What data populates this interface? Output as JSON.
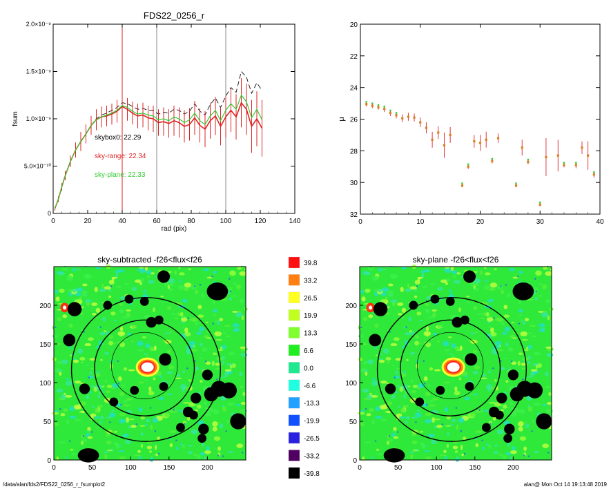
{
  "footer": {
    "path": "/data/alan/fds2/FDS22_0256_r_fsumplot2",
    "stamp": "alan@  Mon Oct 14 19:13:48 2019"
  },
  "colors": {
    "profile_total": "#222222",
    "sky_range": "#dd2222",
    "sky_plane": "#33cc33",
    "mu_points": "#d98020",
    "marker_lines": "#888888",
    "marker_red": "#dd2222"
  },
  "chart_data": [
    {
      "id": "fsum",
      "type": "line",
      "title": "FDS22_0256_r",
      "xlabel": "rad (pix)",
      "ylabel": "fsum",
      "xlim": [
        0,
        140
      ],
      "ylim": [
        0,
        2e-09
      ],
      "x_ticks": [
        "0",
        "20",
        "40",
        "60",
        "80",
        "100",
        "120",
        "140"
      ],
      "y_ticks": [
        "0",
        "5.0×10⁻¹⁰",
        "1.0×10⁻⁹",
        "1.5×10⁻⁹",
        "2.0×10⁻⁹"
      ],
      "vlines": [
        {
          "x": 40,
          "color": "red"
        },
        {
          "x": 60,
          "color": "gray"
        },
        {
          "x": 100,
          "color": "gray"
        }
      ],
      "annotations": [
        {
          "text": "skybox0: 22.29",
          "color": "black"
        },
        {
          "text": "sky-range: 22.34",
          "color": "red"
        },
        {
          "text": "sky-plane: 22.33",
          "color": "green"
        }
      ],
      "x": [
        1,
        3,
        5,
        7,
        10,
        13,
        16,
        19,
        22,
        25,
        28,
        31,
        34,
        37,
        40,
        43,
        46,
        49,
        52,
        55,
        58,
        61,
        64,
        67,
        70,
        73,
        76,
        79,
        82,
        85,
        88,
        91,
        94,
        97,
        100,
        103,
        106,
        109,
        112,
        115,
        118,
        121
      ],
      "series": [
        {
          "values": [
            0.05,
            0.15,
            0.28,
            0.4,
            0.55,
            0.67,
            0.76,
            0.84,
            0.93,
            1.0,
            1.04,
            1.06,
            1.09,
            1.12,
            1.17,
            1.16,
            1.13,
            1.1,
            1.11,
            1.09,
            1.09,
            1.05,
            1.07,
            1.06,
            1.1,
            1.09,
            1.05,
            1.08,
            1.16,
            1.08,
            1.04,
            1.15,
            1.22,
            1.12,
            1.24,
            1.33,
            1.28,
            1.5,
            1.44,
            1.27,
            1.38,
            1.3
          ],
          "style": "dashed"
        },
        {
          "values": [
            0.05,
            0.15,
            0.28,
            0.4,
            0.55,
            0.67,
            0.76,
            0.84,
            0.93,
            0.99,
            1.02,
            1.03,
            1.05,
            1.08,
            1.13,
            1.1,
            1.06,
            1.03,
            1.04,
            1.01,
            1.0,
            0.96,
            0.97,
            0.95,
            0.98,
            0.96,
            0.92,
            0.94,
            1.01,
            0.93,
            0.89,
            0.98,
            1.03,
            0.92,
            1.02,
            1.09,
            1.02,
            1.17,
            1.1,
            0.92,
            1.0,
            0.9
          ],
          "error": [
            0.02,
            0.03,
            0.04,
            0.05,
            0.06,
            0.08,
            0.1,
            0.1,
            0.1,
            0.11,
            0.11,
            0.11,
            0.11,
            0.12,
            0.12,
            0.12,
            0.12,
            0.13,
            0.13,
            0.13,
            0.14,
            0.14,
            0.15,
            0.15,
            0.16,
            0.16,
            0.17,
            0.17,
            0.18,
            0.18,
            0.19,
            0.19,
            0.2,
            0.2,
            0.22,
            0.23,
            0.24,
            0.26,
            0.27,
            0.28,
            0.29,
            0.3
          ],
          "style": "errorbar"
        },
        {
          "values": [
            0.05,
            0.15,
            0.28,
            0.4,
            0.55,
            0.67,
            0.76,
            0.84,
            0.93,
            0.99,
            1.02,
            1.04,
            1.06,
            1.09,
            1.14,
            1.12,
            1.08,
            1.05,
            1.06,
            1.04,
            1.03,
            0.99,
            1.0,
            0.98,
            1.02,
            1.0,
            0.96,
            0.99,
            1.06,
            0.98,
            0.94,
            1.03,
            1.09,
            0.98,
            1.09,
            1.16,
            1.1,
            1.25,
            1.18,
            1.01,
            1.1,
            0.99
          ],
          "style": "line"
        }
      ]
    },
    {
      "id": "mu",
      "type": "scatter",
      "title": "",
      "xlabel": "",
      "ylabel": "μ",
      "xlim": [
        0,
        40
      ],
      "ylim": [
        32,
        20
      ],
      "x_ticks": [
        "0",
        "10",
        "20",
        "30",
        "40"
      ],
      "y_ticks": [
        "20",
        "22",
        "24",
        "26",
        "28",
        "30",
        "32"
      ],
      "points": [
        {
          "x": 1,
          "y": 25.05,
          "err": 0.15
        },
        {
          "x": 2,
          "y": 25.15,
          "err": 0.15
        },
        {
          "x": 3,
          "y": 25.25,
          "err": 0.15
        },
        {
          "x": 4,
          "y": 25.35,
          "err": 0.2
        },
        {
          "x": 5,
          "y": 25.6,
          "err": 0.2
        },
        {
          "x": 6,
          "y": 25.75,
          "err": 0.2
        },
        {
          "x": 7,
          "y": 25.95,
          "err": 0.25
        },
        {
          "x": 8,
          "y": 25.85,
          "err": 0.25
        },
        {
          "x": 9,
          "y": 25.9,
          "err": 0.25
        },
        {
          "x": 10,
          "y": 26.2,
          "err": 0.3
        },
        {
          "x": 11,
          "y": 26.55,
          "err": 0.35
        },
        {
          "x": 12,
          "y": 27.3,
          "err": 0.5
        },
        {
          "x": 13,
          "y": 26.85,
          "err": 0.4
        },
        {
          "x": 14,
          "y": 27.65,
          "err": 0.8
        },
        {
          "x": 15,
          "y": 27.0,
          "err": 0.5
        },
        {
          "x": 17,
          "y": 30.2,
          "err": 0.1
        },
        {
          "x": 18,
          "y": 29.0,
          "err": 0.15
        },
        {
          "x": 19,
          "y": 27.4,
          "err": 0.4
        },
        {
          "x": 20,
          "y": 27.5,
          "err": 0.5
        },
        {
          "x": 21,
          "y": 27.3,
          "err": 0.5
        },
        {
          "x": 22,
          "y": 28.65,
          "err": 0.15
        },
        {
          "x": 23,
          "y": 27.2,
          "err": 0.3
        },
        {
          "x": 26,
          "y": 30.2,
          "err": 0.1
        },
        {
          "x": 27,
          "y": 27.8,
          "err": 0.5
        },
        {
          "x": 28,
          "y": 28.7,
          "err": 0.15
        },
        {
          "x": 30,
          "y": 31.4,
          "err": 0.1
        },
        {
          "x": 31,
          "y": 28.4,
          "err": 1.2
        },
        {
          "x": 33,
          "y": 28.3,
          "err": 1.0
        },
        {
          "x": 34,
          "y": 28.9,
          "err": 0.15
        },
        {
          "x": 36,
          "y": 28.9,
          "err": 0.2
        },
        {
          "x": 37,
          "y": 27.8,
          "err": 0.4
        },
        {
          "x": 38,
          "y": 28.3,
          "err": 0.9
        },
        {
          "x": 39,
          "y": 29.5,
          "err": 0.2
        }
      ]
    },
    {
      "id": "sky-subtracted",
      "type": "heatmap",
      "title": "sky-subtracted -f26<flux<f26",
      "xlim": [
        0,
        250
      ],
      "ylim": [
        0,
        250
      ],
      "x_ticks": [
        "0",
        "50",
        "100",
        "150",
        "200"
      ],
      "y_ticks": [
        "0",
        "50",
        "100",
        "150",
        "200"
      ]
    },
    {
      "id": "sky-plane",
      "type": "heatmap",
      "title": "sky-plane -f26<flux<f26",
      "xlim": [
        0,
        250
      ],
      "ylim": [
        0,
        250
      ],
      "x_ticks": [
        "0",
        "50",
        "100",
        "150",
        "200"
      ],
      "y_ticks": [
        "0",
        "50",
        "100",
        "150",
        "200"
      ]
    },
    {
      "id": "colorbar",
      "type": "heatmap",
      "levels": [
        "39.8",
        "33.2",
        "26.5",
        "19.9",
        "13.3",
        "6.6",
        "0.0",
        "-6.6",
        "-13.3",
        "-19.9",
        "-26.5",
        "-33.2",
        "-39.8"
      ],
      "colors": [
        "#ff1010",
        "#ff8010",
        "#ffff20",
        "#c0ff20",
        "#80ff30",
        "#20ee20",
        "#20e890",
        "#20ffe0",
        "#20a0ff",
        "#1050ff",
        "#2a20e0",
        "#500060",
        "#000000"
      ]
    }
  ],
  "map": {
    "masks": [
      {
        "x": 118,
        "y": 205,
        "r": 5
      },
      {
        "x": 127,
        "y": 178,
        "r": 6
      },
      {
        "x": 137,
        "y": 181,
        "r": 5
      },
      {
        "x": 143,
        "y": 237,
        "r": 7
      },
      {
        "x": 213,
        "y": 218,
        "r": 12,
        "ry": 10
      },
      {
        "x": 70,
        "y": 200,
        "r": 5
      },
      {
        "x": 98,
        "y": 208,
        "r": 5
      },
      {
        "x": 27,
        "y": 195,
        "r": 8
      },
      {
        "x": 20,
        "y": 155,
        "r": 7
      },
      {
        "x": 145,
        "y": 130,
        "r": 7
      },
      {
        "x": 143,
        "y": 95,
        "r": 5
      },
      {
        "x": 40,
        "y": 92,
        "r": 6
      },
      {
        "x": 105,
        "y": 90,
        "r": 5
      },
      {
        "x": 78,
        "y": 75,
        "r": 5
      },
      {
        "x": 200,
        "y": 110,
        "r": 6
      },
      {
        "x": 185,
        "y": 80,
        "r": 6
      },
      {
        "x": 205,
        "y": 85,
        "r": 8
      },
      {
        "x": 215,
        "y": 92,
        "r": 9
      },
      {
        "x": 228,
        "y": 90,
        "r": 9
      },
      {
        "x": 240,
        "y": 50,
        "r": 9
      },
      {
        "x": 175,
        "y": 62,
        "r": 6
      },
      {
        "x": 182,
        "y": 58,
        "r": 5
      },
      {
        "x": 165,
        "y": 42,
        "r": 5
      },
      {
        "x": 195,
        "y": 40,
        "r": 6
      },
      {
        "x": 193,
        "y": 28,
        "r": 5
      },
      {
        "x": 45,
        "y": 6,
        "r": 12,
        "ry": 8
      }
    ],
    "ellipses": [
      {
        "cx": 120,
        "cy": 117,
        "rx": 97,
        "ry": 93,
        "w": 1.4
      },
      {
        "cx": 118,
        "cy": 119,
        "rx": 65,
        "ry": 62,
        "w": 1.4
      },
      {
        "cx": 118,
        "cy": 122,
        "rx": 43,
        "ry": 43,
        "w": 0.7
      }
    ],
    "center": {
      "x": 122,
      "y": 120
    }
  }
}
